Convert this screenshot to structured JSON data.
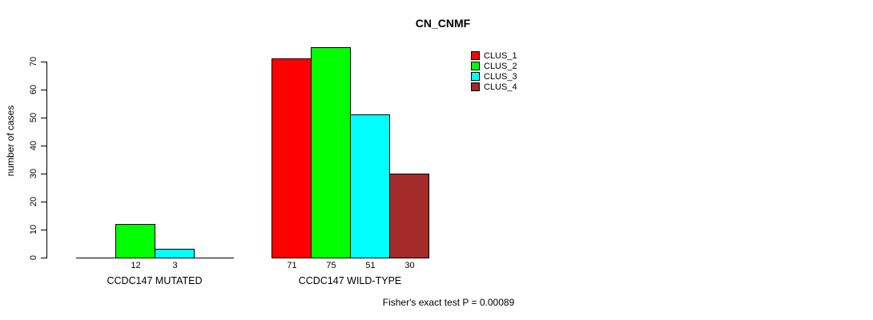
{
  "chart_data": {
    "type": "bar",
    "title": "CN_CNMF",
    "ylabel": "number of cases",
    "xlabel": "",
    "ylim": [
      0,
      70
    ],
    "yticks": [
      0,
      10,
      20,
      30,
      40,
      50,
      60,
      70
    ],
    "categories": [
      "CCDC147 MUTATED",
      "CCDC147 WILD-TYPE"
    ],
    "series": [
      {
        "name": "CLUS_1",
        "color": "#FF0000",
        "values": [
          0,
          71
        ]
      },
      {
        "name": "CLUS_2",
        "color": "#00FF00",
        "values": [
          12,
          75
        ]
      },
      {
        "name": "CLUS_3",
        "color": "#00FFFF",
        "values": [
          3,
          51
        ]
      },
      {
        "name": "CLUS_4",
        "color": "#A52A2A",
        "values": [
          0,
          30
        ]
      }
    ],
    "bar_value_labels": [
      [
        null,
        12,
        3,
        null
      ],
      [
        71,
        75,
        51,
        30
      ]
    ],
    "legend": {
      "position": "top-right",
      "entries": [
        "CLUS_1",
        "CLUS_2",
        "CLUS_3",
        "CLUS_4"
      ]
    },
    "annotation": "Fisher's exact test P = 0.00089",
    "grid": false,
    "background": "#FFFFFF",
    "bar_border_color": "#000000",
    "axis_color": "#000000"
  }
}
